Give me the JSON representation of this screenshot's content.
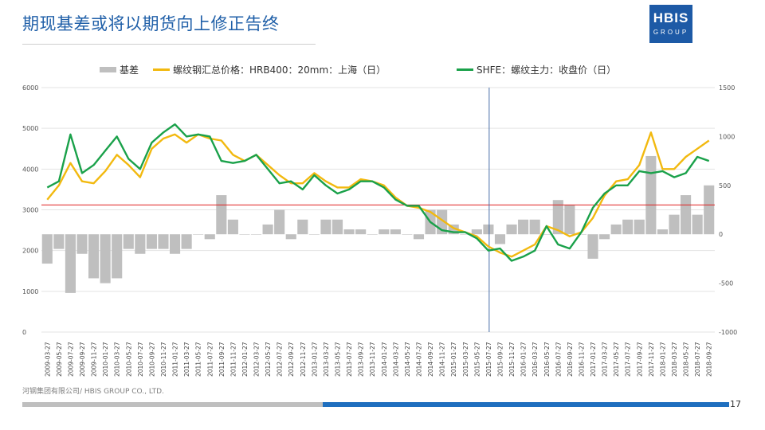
{
  "slide": {
    "title": "期现基差或将以期货向上修正告终",
    "logo_main": "HBIS",
    "logo_sub": "GROUP",
    "footer": "河钢集团有限公司/ HBIS GROUP CO., LTD.",
    "page_number": "17"
  },
  "colors": {
    "basis": "#bfbfbf",
    "spot": "#f2b90f",
    "futures": "#1aa14a",
    "redline": "#e02020",
    "vline": "#4a6fa8",
    "title": "#1f5fa8"
  },
  "chart_data": {
    "type": "line",
    "title": "",
    "legend": [
      "基差",
      "螺纹钢汇总价格：HRB400：20mm：上海（日）",
      "SHFE：螺纹主力：收盘价（日）"
    ],
    "legend_position": "top",
    "categories": [
      "2009-03-27",
      "2009-05-27",
      "2009-07-27",
      "2009-09-27",
      "2009-11-27",
      "2010-01-27",
      "2010-03-27",
      "2010-05-27",
      "2010-07-27",
      "2010-09-27",
      "2010-11-27",
      "2011-01-27",
      "2011-03-27",
      "2011-05-27",
      "2011-07-27",
      "2011-09-27",
      "2011-11-27",
      "2012-01-27",
      "2012-03-27",
      "2012-05-27",
      "2012-07-27",
      "2012-09-27",
      "2012-11-27",
      "2013-01-27",
      "2013-03-27",
      "2013-05-27",
      "2013-07-27",
      "2013-09-27",
      "2013-11-27",
      "2014-01-27",
      "2014-03-27",
      "2014-05-27",
      "2014-07-27",
      "2014-09-27",
      "2014-11-27",
      "2015-01-27",
      "2015-03-27",
      "2015-05-27",
      "2015-07-27",
      "2015-09-27",
      "2015-11-27",
      "2016-01-27",
      "2016-03-27",
      "2016-05-27",
      "2016-07-27",
      "2016-09-27",
      "2016-11-27",
      "2017-01-27",
      "2017-03-27",
      "2017-05-27",
      "2017-07-27",
      "2017-09-27",
      "2017-11-27",
      "2018-01-27",
      "2018-03-27",
      "2018-05-27",
      "2018-07-27",
      "2018-09-27"
    ],
    "y_left": {
      "min": 0,
      "max": 6000,
      "ticks": [
        "0",
        "1000",
        "2000",
        "3000",
        "4000",
        "5000",
        "6000"
      ]
    },
    "y_right": {
      "min": -1000,
      "max": 1500,
      "ticks": [
        "-1000",
        "-500",
        "0",
        "500",
        "1000",
        "1500"
      ]
    },
    "reference_line_left": 3120,
    "vertical_marker": "2015-08-01",
    "series": [
      {
        "name": "螺纹钢汇总价格：HRB400：20mm：上海（日）",
        "axis": "left",
        "values": [
          3250,
          3600,
          4150,
          3700,
          3650,
          3950,
          4350,
          4100,
          3800,
          4500,
          4750,
          4850,
          4650,
          4850,
          4750,
          4700,
          4350,
          4200,
          4350,
          4100,
          3850,
          3650,
          3650,
          3900,
          3700,
          3550,
          3550,
          3750,
          3700,
          3600,
          3300,
          3100,
          3050,
          2950,
          2750,
          2550,
          2450,
          2350,
          2100,
          1950,
          1850,
          2000,
          2150,
          2600,
          2500,
          2350,
          2450,
          2800,
          3350,
          3700,
          3750,
          4100,
          4900,
          4000,
          4000,
          4300,
          4500,
          4700
        ]
      },
      {
        "name": "SHFE：螺纹主力：收盘价（日）",
        "axis": "left",
        "values": [
          3550,
          3700,
          4850,
          3900,
          4100,
          4450,
          4800,
          4250,
          4000,
          4650,
          4900,
          5100,
          4800,
          4850,
          4800,
          4200,
          4150,
          4200,
          4350,
          4000,
          3650,
          3700,
          3500,
          3850,
          3600,
          3400,
          3500,
          3700,
          3700,
          3550,
          3250,
          3100,
          3100,
          2700,
          2500,
          2450,
          2450,
          2300,
          2000,
          2050,
          1750,
          1850,
          2000,
          2600,
          2150,
          2050,
          2450,
          3050,
          3400,
          3600,
          3600,
          3950,
          3900,
          3950,
          3800,
          3900,
          4300,
          4200
        ]
      },
      {
        "name": "基差",
        "axis": "right",
        "values": [
          -300,
          -150,
          -600,
          -200,
          -450,
          -500,
          -450,
          -150,
          -200,
          -150,
          -150,
          -200,
          -150,
          0,
          -50,
          400,
          150,
          0,
          0,
          100,
          250,
          -50,
          150,
          0,
          150,
          150,
          50,
          50,
          0,
          50,
          50,
          0,
          -50,
          250,
          250,
          100,
          0,
          50,
          100,
          -100,
          100,
          150,
          150,
          0,
          350,
          300,
          0,
          -250,
          -50,
          100,
          150,
          150,
          800,
          50,
          200,
          400,
          200,
          500
        ]
      }
    ]
  }
}
